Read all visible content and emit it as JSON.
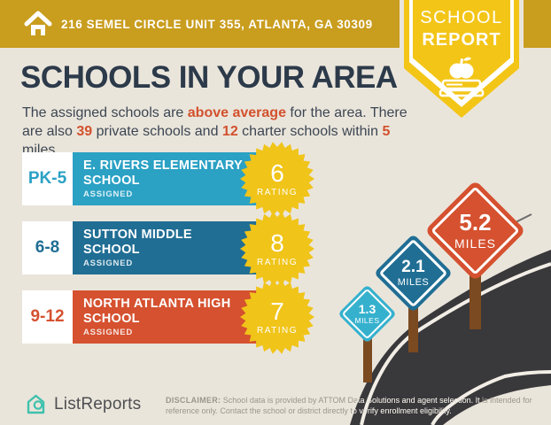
{
  "header": {
    "address": "216 SEMEL CIRCLE UNIT 355, ATLANTA, GA 30309"
  },
  "badge": {
    "line1": "SCHOOL",
    "line2": "REPORT"
  },
  "title": "SCHOOLS IN YOUR AREA",
  "intro": {
    "part1": "The assigned schools are ",
    "highlight1": "above average",
    "part2": " for the area. There are also ",
    "highlight2": "39",
    "part3": " private schools and ",
    "highlight3": "12",
    "part4": " charter schools within ",
    "highlight4": "5",
    "part5": " miles."
  },
  "schools": [
    {
      "grades": "PK-5",
      "name": "E. RIVERS ELEMENTARY SCHOOL",
      "status": "ASSIGNED",
      "rating": "6",
      "rating_label": "RATING",
      "color": "#2BA1C4"
    },
    {
      "grades": "6-8",
      "name": "SUTTON MIDDLE SCHOOL",
      "status": "ASSIGNED",
      "rating": "8",
      "rating_label": "RATING",
      "color": "#206E94"
    },
    {
      "grades": "9-12",
      "name": "NORTH ATLANTA HIGH SCHOOL",
      "status": "ASSIGNED",
      "rating": "7",
      "rating_label": "RATING",
      "color": "#D5512F"
    }
  ],
  "signs": [
    {
      "distance": "1.3",
      "unit": "MILES",
      "color": "#35B1CE"
    },
    {
      "distance": "2.1",
      "unit": "MILES",
      "color": "#206E94"
    },
    {
      "distance": "5.2",
      "unit": "MILES",
      "color": "#D5512F"
    }
  ],
  "footer": {
    "brand": "ListReports",
    "disclaimer_label": "DISCLAIMER:",
    "disclaimer_text": " School data is provided by ATTOM Data Solutions and agent selection. It is intended for reference only. Contact the school or district directly to verify enrollment eligibility."
  },
  "icons": {
    "header_home": "home-icon",
    "badge_apple": "apple-icon",
    "badge_book": "book-icon",
    "brand_logo": "house-magnifier-icon"
  },
  "colors": {
    "background": "#EAE5DB",
    "header_gold": "#C99D1E",
    "badge_yellow": "#F3C517",
    "title_dark": "#2C3A4A",
    "accent_orange": "#D2512D",
    "teal_light": "#2BA1C4",
    "teal_dark": "#206E94",
    "red_orange": "#D5512F",
    "seal_yellow": "#F0C419",
    "road_dark": "#39383B",
    "post_brown": "#7B4A20",
    "brand_teal": "#3FC1AD"
  },
  "chart_data": {
    "type": "table",
    "title": "SCHOOLS IN YOUR AREA",
    "series": [
      {
        "name": "E. RIVERS ELEMENTARY SCHOOL",
        "grades": "PK-5",
        "status": "ASSIGNED",
        "rating": 6,
        "distance_miles": 1.3
      },
      {
        "name": "SUTTON MIDDLE SCHOOL",
        "grades": "6-8",
        "status": "ASSIGNED",
        "rating": 8,
        "distance_miles": 2.1
      },
      {
        "name": "NORTH ATLANTA HIGH SCHOOL",
        "grades": "9-12",
        "status": "ASSIGNED",
        "rating": 7,
        "distance_miles": 5.2
      }
    ],
    "notes": {
      "assessment": "above average",
      "private_schools": 39,
      "charter_schools": 12,
      "radius_miles": 5
    }
  }
}
